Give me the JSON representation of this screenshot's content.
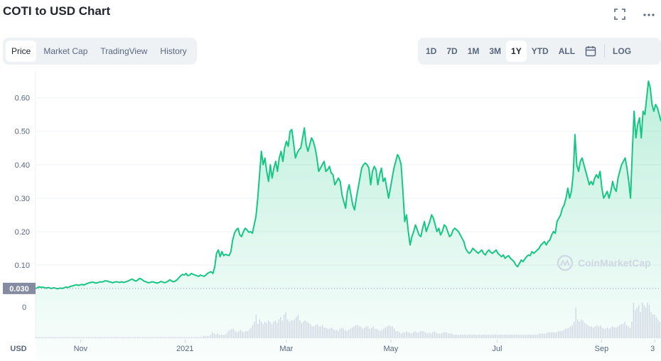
{
  "header": {
    "title": "COTI to USD Chart",
    "fullscreen_icon": "fullscreen-icon",
    "more_icon": "more-options-icon"
  },
  "view_tabs": [
    {
      "label": "Price",
      "active": true
    },
    {
      "label": "Market Cap",
      "active": false
    },
    {
      "label": "TradingView",
      "active": false
    },
    {
      "label": "History",
      "active": false
    }
  ],
  "range_tabs": [
    {
      "label": "1D",
      "active": false
    },
    {
      "label": "7D",
      "active": false
    },
    {
      "label": "1M",
      "active": false
    },
    {
      "label": "3M",
      "active": false
    },
    {
      "label": "1Y",
      "active": true
    },
    {
      "label": "YTD",
      "active": false
    },
    {
      "label": "ALL",
      "active": false
    }
  ],
  "calendar_icon": "calendar-icon",
  "log_label": "LOG",
  "watermark": "CoinMarketCap",
  "colors": {
    "line": "#16c784",
    "area_top": "#16c784",
    "grid": "#eff2f5",
    "axis_text": "#58667e",
    "current_price_bg": "#858ca2",
    "volume_bar": "#cfd6e4"
  },
  "chart_data": {
    "type": "area",
    "x_ticks": [
      "Nov",
      "2021",
      "Mar",
      "May",
      "Jul",
      "Sep",
      "3"
    ],
    "x_label": "USD",
    "y_ticks": [
      0.1,
      0.2,
      0.3,
      0.4,
      0.5,
      0.6
    ],
    "y_tick_labels": [
      "0.10",
      "0.20",
      "0.30",
      "0.40",
      "0.50",
      "0.60"
    ],
    "ylim": [
      0.0,
      0.68
    ],
    "current_price_label": "0.030",
    "current_price": 0.03,
    "volume_axis_label": "0",
    "grid": true,
    "series": [
      {
        "values": [
          0.03,
          0.032,
          0.035,
          0.033,
          0.034,
          0.032,
          0.031,
          0.033,
          0.031,
          0.03,
          0.032,
          0.031,
          0.029,
          0.03,
          0.031,
          0.03,
          0.032,
          0.034,
          0.033,
          0.035,
          0.037,
          0.038,
          0.04,
          0.041,
          0.039,
          0.041,
          0.042,
          0.04,
          0.043,
          0.045,
          0.047,
          0.048,
          0.049,
          0.047,
          0.046,
          0.048,
          0.05,
          0.049,
          0.051,
          0.053,
          0.052,
          0.05,
          0.049,
          0.047,
          0.049,
          0.05,
          0.049,
          0.048,
          0.05,
          0.048,
          0.049,
          0.051,
          0.053,
          0.056,
          0.058,
          0.054,
          0.052,
          0.055,
          0.06,
          0.058,
          0.054,
          0.051,
          0.049,
          0.047,
          0.048,
          0.05,
          0.049,
          0.047,
          0.046,
          0.048,
          0.051,
          0.049,
          0.047,
          0.049,
          0.052,
          0.056,
          0.052,
          0.05,
          0.052,
          0.056,
          0.062,
          0.068,
          0.072,
          0.07,
          0.075,
          0.068,
          0.07,
          0.075,
          0.072,
          0.07,
          0.068,
          0.066,
          0.07,
          0.068,
          0.066,
          0.07,
          0.075,
          0.078,
          0.08,
          0.075,
          0.095,
          0.135,
          0.145,
          0.125,
          0.14,
          0.128,
          0.132,
          0.13,
          0.128,
          0.14,
          0.175,
          0.195,
          0.205,
          0.21,
          0.19,
          0.185,
          0.2,
          0.21,
          0.205,
          0.198,
          0.2,
          0.195,
          0.22,
          0.245,
          0.3,
          0.37,
          0.44,
          0.4,
          0.42,
          0.38,
          0.35,
          0.4,
          0.36,
          0.39,
          0.41,
          0.38,
          0.42,
          0.44,
          0.41,
          0.45,
          0.47,
          0.455,
          0.5,
          0.505,
          0.465,
          0.42,
          0.435,
          0.445,
          0.45,
          0.48,
          0.51,
          0.46,
          0.44,
          0.46,
          0.48,
          0.47,
          0.45,
          0.42,
          0.38,
          0.39,
          0.4,
          0.41,
          0.38,
          0.385,
          0.395,
          0.375,
          0.37,
          0.34,
          0.35,
          0.36,
          0.35,
          0.31,
          0.29,
          0.27,
          0.32,
          0.34,
          0.31,
          0.28,
          0.265,
          0.3,
          0.33,
          0.36,
          0.39,
          0.4,
          0.405,
          0.4,
          0.39,
          0.34,
          0.38,
          0.395,
          0.385,
          0.34,
          0.37,
          0.39,
          0.35,
          0.36,
          0.33,
          0.3,
          0.33,
          0.36,
          0.39,
          0.41,
          0.43,
          0.42,
          0.4,
          0.32,
          0.23,
          0.25,
          0.2,
          0.16,
          0.185,
          0.2,
          0.22,
          0.205,
          0.19,
          0.185,
          0.21,
          0.23,
          0.2,
          0.215,
          0.23,
          0.25,
          0.24,
          0.22,
          0.2,
          0.21,
          0.19,
          0.2,
          0.22,
          0.215,
          0.2,
          0.185,
          0.19,
          0.205,
          0.21,
          0.205,
          0.2,
          0.19,
          0.18,
          0.17,
          0.15,
          0.14,
          0.135,
          0.14,
          0.15,
          0.145,
          0.14,
          0.135,
          0.14,
          0.145,
          0.135,
          0.13,
          0.14,
          0.145,
          0.138,
          0.135,
          0.14,
          0.145,
          0.135,
          0.13,
          0.125,
          0.13,
          0.12,
          0.125,
          0.128,
          0.12,
          0.115,
          0.11,
          0.1,
          0.095,
          0.105,
          0.115,
          0.11,
          0.118,
          0.125,
          0.13,
          0.128,
          0.14,
          0.135,
          0.14,
          0.145,
          0.15,
          0.16,
          0.165,
          0.17,
          0.16,
          0.17,
          0.175,
          0.19,
          0.2,
          0.195,
          0.23,
          0.24,
          0.25,
          0.27,
          0.28,
          0.3,
          0.33,
          0.3,
          0.32,
          0.37,
          0.49,
          0.4,
          0.38,
          0.41,
          0.42,
          0.4,
          0.38,
          0.36,
          0.34,
          0.35,
          0.34,
          0.36,
          0.37,
          0.36,
          0.38,
          0.33,
          0.3,
          0.31,
          0.32,
          0.3,
          0.32,
          0.35,
          0.33,
          0.32,
          0.36,
          0.38,
          0.4,
          0.41,
          0.42,
          0.39,
          0.35,
          0.3,
          0.44,
          0.56,
          0.48,
          0.52,
          0.54,
          0.48,
          0.56,
          0.55,
          0.6,
          0.65,
          0.63,
          0.58,
          0.56,
          0.58,
          0.57,
          0.55,
          0.53
        ]
      }
    ],
    "volume": [
      1,
      1,
      1,
      1,
      1,
      1,
      1,
      1,
      1,
      1,
      1,
      1,
      1,
      1,
      1,
      1,
      1,
      1,
      1,
      1,
      1,
      1,
      1,
      1,
      1,
      1,
      1,
      1,
      1,
      1,
      1,
      1,
      1,
      1,
      1,
      1,
      1,
      1,
      1,
      1,
      1,
      1,
      1,
      1,
      1,
      1,
      1,
      1,
      1,
      1,
      1,
      1,
      1,
      1,
      1,
      1,
      1,
      1,
      1,
      1,
      1,
      1,
      1,
      1,
      1,
      1,
      1,
      1,
      1,
      1,
      1,
      1,
      1,
      1,
      1,
      1,
      1,
      1,
      1,
      1,
      1,
      1,
      1,
      1,
      1,
      1,
      1,
      1,
      1,
      1,
      1,
      1,
      1,
      1,
      1,
      1,
      2,
      2,
      2,
      2,
      3,
      5,
      4,
      3,
      4,
      3,
      3,
      3,
      3,
      4,
      6,
      7,
      8,
      8,
      6,
      5,
      6,
      7,
      6,
      5,
      6,
      6,
      7,
      9,
      11,
      14,
      20,
      12,
      16,
      14,
      12,
      14,
      13,
      15,
      14,
      12,
      14,
      15,
      13,
      16,
      18,
      15,
      20,
      22,
      16,
      14,
      15,
      15,
      16,
      18,
      20,
      15,
      13,
      14,
      15,
      14,
      13,
      12,
      10,
      10,
      11,
      12,
      10,
      10,
      11,
      9,
      9,
      8,
      8,
      9,
      8,
      7,
      7,
      6,
      8,
      9,
      8,
      7,
      6,
      7,
      8,
      9,
      10,
      11,
      11,
      10,
      10,
      8,
      9,
      10,
      10,
      8,
      9,
      10,
      8,
      8,
      7,
      6,
      7,
      8,
      9,
      10,
      11,
      10,
      10,
      8,
      6,
      6,
      5,
      4,
      5,
      5,
      6,
      5,
      5,
      4,
      5,
      6,
      5,
      5,
      6,
      6,
      6,
      5,
      4,
      5,
      4,
      5,
      6,
      5,
      4,
      4,
      4,
      5,
      5,
      5,
      4,
      4,
      4,
      3,
      3,
      3,
      3,
      3,
      3,
      3,
      3,
      3,
      3,
      3,
      3,
      3,
      3,
      3,
      3,
      3,
      3,
      3,
      3,
      3,
      3,
      3,
      3,
      3,
      3,
      3,
      3,
      3,
      3,
      3,
      3,
      3,
      3,
      3,
      3,
      3,
      3,
      3,
      3,
      3,
      3,
      3,
      3,
      3,
      3,
      3,
      3,
      3,
      4,
      4,
      4,
      4,
      4,
      5,
      5,
      5,
      5,
      5,
      5,
      6,
      6,
      6,
      7,
      8,
      8,
      9,
      10,
      11,
      14,
      26,
      16,
      14,
      16,
      15,
      13,
      12,
      11,
      10,
      10,
      9,
      10,
      11,
      10,
      11,
      9,
      8,
      8,
      9,
      8,
      9,
      10,
      9,
      9,
      10,
      11,
      12,
      12,
      14,
      11,
      10,
      9,
      14,
      30,
      24,
      26,
      28,
      22,
      30,
      28,
      26,
      30,
      28,
      22,
      20,
      20,
      18,
      16,
      14
    ]
  }
}
